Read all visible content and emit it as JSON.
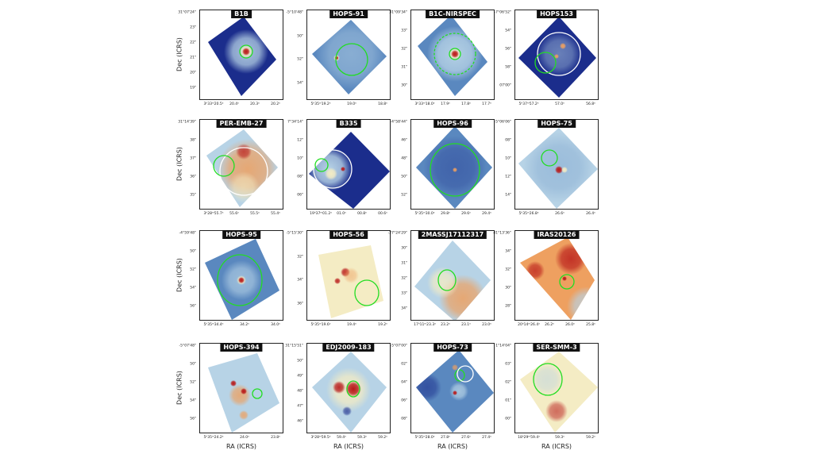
{
  "axis_labels": {
    "dec": "Dec (ICRS)",
    "ra": "RA (ICRS)"
  },
  "colors": {
    "dark_blue": "#1b2d8c",
    "mid_blue": "#5a88bf",
    "light_blue": "#b7d3e6",
    "pale": "#f4ecc4",
    "orange": "#eea060",
    "red": "#b81818",
    "aperture_green": "#22dd22",
    "aperture_white": "#ffffff"
  },
  "panels": [
    {
      "name": "B1B",
      "yticks": [
        "31°07'24\"",
        "23\"",
        "22\"",
        "21\"",
        "20\"",
        "19\""
      ],
      "xticks": [
        "3ʰ33ᵐ20.5ˢ",
        "20.4ˢ",
        "20.3ˢ",
        "20.2ˢ"
      ]
    },
    {
      "name": "HOPS-91",
      "yticks": [
        "-5°10'48\"",
        "50\"",
        "52\"",
        "54\""
      ],
      "xticks": [
        "5ʰ35ᵐ19.2ˢ",
        "19.0ˢ",
        "18.8ˢ"
      ]
    },
    {
      "name": "B1C-NIRSPEC",
      "yticks": [
        "31°09'34\"",
        "33\"",
        "32\"",
        "31\"",
        "30\""
      ],
      "xticks": [
        "3ʰ33ᵐ18.0ˢ",
        "17.9ˢ",
        "17.8ˢ",
        "17.7ˢ"
      ]
    },
    {
      "name": "HOPS153",
      "yticks": [
        "-7°06'52\"",
        "54\"",
        "56\"",
        "58\"",
        "07'00\""
      ],
      "xticks": [
        "5ʰ37ᵐ57.2ˢ",
        "57.0ˢ",
        "56.8ˢ"
      ]
    },
    {
      "name": "PER-EMB-27",
      "yticks": [
        "31°14'39\"",
        "38\"",
        "37\"",
        "36\"",
        "35\""
      ],
      "xticks": [
        "3ʰ28ᵐ55.7ˢ",
        "55.6ˢ",
        "55.5ˢ",
        "55.4ˢ"
      ]
    },
    {
      "name": "B335",
      "yticks": [
        "7°34'14\"",
        "12\"",
        "10\"",
        "08\"",
        "06\""
      ],
      "xticks": [
        "19ʰ37ᵐ01.2ˢ",
        "01.0ˢ",
        "00.8ˢ",
        "00.6ˢ"
      ]
    },
    {
      "name": "HOPS-96",
      "yticks": [
        "-4°58'44\"",
        "46\"",
        "48\"",
        "50\"",
        "52\""
      ],
      "xticks": [
        "5ʰ35ᵐ30.0ˢ",
        "29.8ˢ",
        "29.6ˢ",
        "29.4ˢ"
      ]
    },
    {
      "name": "HOPS-75",
      "yticks": [
        "-5°06'06\"",
        "08\"",
        "10\"",
        "12\"",
        "14\""
      ],
      "xticks": [
        "5ʰ35ᵐ26.8ˢ",
        "26.6ˢ",
        "26.4ˢ"
      ]
    },
    {
      "name": "HOPS-95",
      "yticks": [
        "-4°59'48\"",
        "50\"",
        "52\"",
        "54\"",
        "56\""
      ],
      "xticks": [
        "5ʰ35ᵐ34.4ˢ",
        "34.2ˢ",
        "34.0ˢ"
      ]
    },
    {
      "name": "HOPS-56",
      "yticks": [
        "-5°15'30\"",
        "32\"",
        "34\"",
        "36\""
      ],
      "xticks": [
        "5ʰ35ᵐ19.6ˢ",
        "19.4ˢ",
        "19.2ˢ"
      ]
    },
    {
      "name": "2MASSJ17112317",
      "yticks": [
        "-27°24'29\"",
        "30\"",
        "31\"",
        "32\"",
        "33\"",
        "34\""
      ],
      "xticks": [
        "17ʰ11ᵐ23.3ˢ",
        "23.2ˢ",
        "23.1ˢ",
        "23.0ˢ"
      ]
    },
    {
      "name": "IRAS20126",
      "yticks": [
        "41°13'36\"",
        "34\"",
        "32\"",
        "30\"",
        "28\""
      ],
      "xticks": [
        "20ʰ14ᵐ26.4ˢ",
        "26.2ˢ",
        "26.0ˢ",
        "25.8ˢ"
      ]
    },
    {
      "name": "HOPS-394",
      "yticks": [
        "-5°07'48\"",
        "50\"",
        "52\"",
        "54\"",
        "56\""
      ],
      "xticks": [
        "5ʰ35ᵐ24.2ˢ",
        "24.0ˢ",
        "23.8ˢ"
      ]
    },
    {
      "name": "EDJ2009-183",
      "yticks": [
        "31°15'51\"",
        "50\"",
        "49\"",
        "48\"",
        "47\"",
        "46\""
      ],
      "xticks": [
        "3ʰ28ᵐ59.5ˢ",
        "59.4ˢ",
        "59.3ˢ",
        "59.2ˢ"
      ]
    },
    {
      "name": "HOPS-73",
      "yticks": [
        "-5°07'00\"",
        "02\"",
        "04\"",
        "06\"",
        "08\""
      ],
      "xticks": [
        "5ʰ35ᵐ28.0ˢ",
        "27.8ˢ",
        "27.6ˢ",
        "27.4ˢ"
      ]
    },
    {
      "name": "SER-SMM-3",
      "yticks": [
        "1°14'04\"",
        "03\"",
        "02\"",
        "01\"",
        "00\""
      ],
      "xticks": [
        "18ʰ29ᵐ59.4ˢ",
        "59.3ˢ",
        "59.2ˢ"
      ]
    }
  ]
}
